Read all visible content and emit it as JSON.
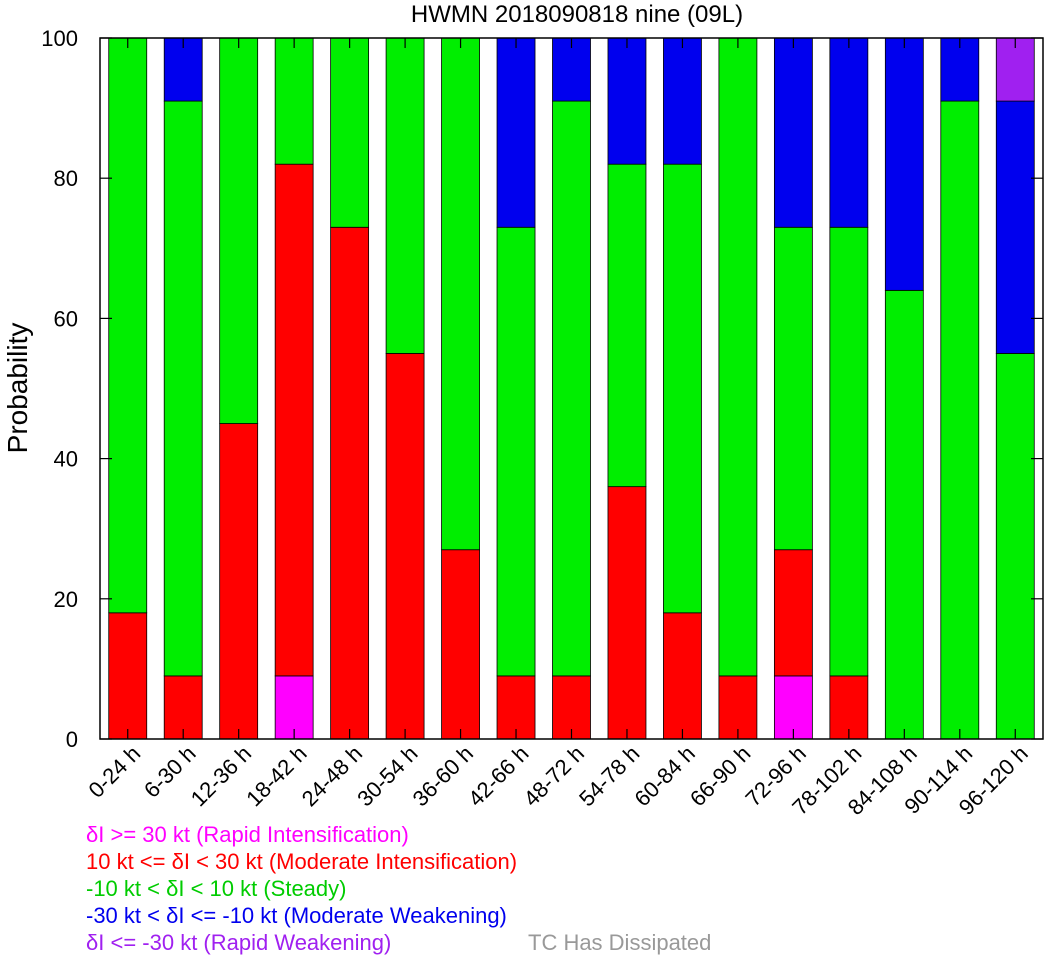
{
  "chart_data": {
    "type": "bar",
    "stacked": true,
    "title": "HWMN 2018090818 nine (09L)",
    "xlabel": "",
    "ylabel": "Probability",
    "ylim": [
      0,
      100
    ],
    "yticks": [
      0,
      20,
      40,
      60,
      80,
      100
    ],
    "categories": [
      "0-24 h",
      "6-30 h",
      "12-36 h",
      "18-42 h",
      "24-48 h",
      "30-54 h",
      "36-60 h",
      "42-66 h",
      "48-72 h",
      "54-78 h",
      "60-84 h",
      "66-90 h",
      "72-96 h",
      "78-102 h",
      "84-108 h",
      "90-114 h",
      "96-120 h"
    ],
    "series": [
      {
        "name": "Rapid Intensification",
        "color": "#ff00ff",
        "values": [
          0,
          0,
          0,
          9,
          0,
          0,
          0,
          0,
          0,
          0,
          0,
          0,
          9,
          0,
          0,
          0,
          0
        ]
      },
      {
        "name": "Moderate Intensification",
        "color": "#ff0000",
        "values": [
          18,
          9,
          45,
          73,
          73,
          55,
          27,
          9,
          9,
          36,
          18,
          9,
          18,
          9,
          0,
          0,
          0
        ]
      },
      {
        "name": "Steady",
        "color": "#00ee00",
        "values": [
          82,
          82,
          55,
          18,
          27,
          45,
          73,
          64,
          82,
          46,
          64,
          91,
          46,
          64,
          64,
          91,
          55
        ]
      },
      {
        "name": "Moderate Weakening",
        "color": "#0000ee",
        "values": [
          0,
          9,
          0,
          0,
          0,
          0,
          0,
          27,
          9,
          18,
          18,
          0,
          27,
          27,
          36,
          9,
          36
        ]
      },
      {
        "name": "Rapid Weakening",
        "color": "#a020f0",
        "values": [
          0,
          0,
          0,
          0,
          0,
          0,
          0,
          0,
          0,
          0,
          0,
          0,
          0,
          0,
          0,
          0,
          9
        ]
      }
    ]
  },
  "legend": [
    {
      "text": "δI >= 30 kt (Rapid Intensification)",
      "color": "#ff00ff"
    },
    {
      "text": "10 kt <= δI < 30 kt (Moderate Intensification)",
      "color": "#ff0000"
    },
    {
      "text": "-10 kt < δI < 10 kt (Steady)",
      "color": "#00cc00"
    },
    {
      "text": "-30 kt < δI <= -10 kt (Moderate Weakening)",
      "color": "#0000ee"
    },
    {
      "text": "δI <= -30 kt (Rapid Weakening)",
      "color": "#a020f0"
    }
  ],
  "dissipated_note": "TC Has Dissipated"
}
